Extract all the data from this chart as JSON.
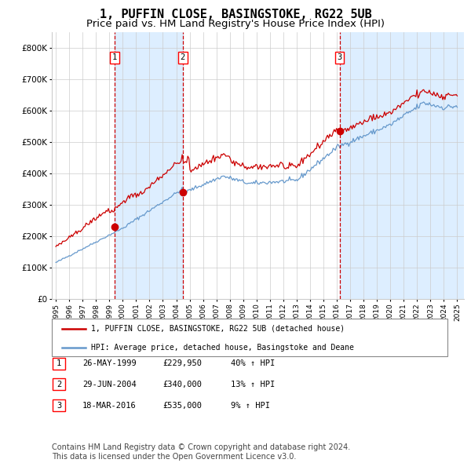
{
  "title": "1, PUFFIN CLOSE, BASINGSTOKE, RG22 5UB",
  "subtitle": "Price paid vs. HM Land Registry's House Price Index (HPI)",
  "title_fontsize": 11,
  "subtitle_fontsize": 9.5,
  "ylim": [
    0,
    850000
  ],
  "yticks": [
    0,
    100000,
    200000,
    300000,
    400000,
    500000,
    600000,
    700000,
    800000
  ],
  "ytick_labels": [
    "£0",
    "£100K",
    "£200K",
    "£300K",
    "£400K",
    "£500K",
    "£600K",
    "£700K",
    "£800K"
  ],
  "sale_dates": [
    1999.38,
    2004.49,
    2016.21
  ],
  "sale_prices": [
    229950,
    340000,
    535000
  ],
  "sale_labels": [
    "1",
    "2",
    "3"
  ],
  "hpi_color": "#6699cc",
  "price_color": "#cc0000",
  "shade_color": "#ddeeff",
  "vline_color": "#cc0000",
  "grid_color": "#cccccc",
  "legend_line1": "1, PUFFIN CLOSE, BASINGSTOKE, RG22 5UB (detached house)",
  "legend_line2": "HPI: Average price, detached house, Basingstoke and Deane",
  "table_rows": [
    [
      "1",
      "26-MAY-1999",
      "£229,950",
      "40% ↑ HPI"
    ],
    [
      "2",
      "29-JUN-2004",
      "£340,000",
      "13% ↑ HPI"
    ],
    [
      "3",
      "18-MAR-2016",
      "£535,000",
      "9% ↑ HPI"
    ]
  ],
  "footnote": "Contains HM Land Registry data © Crown copyright and database right 2024.\nThis data is licensed under the Open Government Licence v3.0.",
  "footnote_fontsize": 7
}
